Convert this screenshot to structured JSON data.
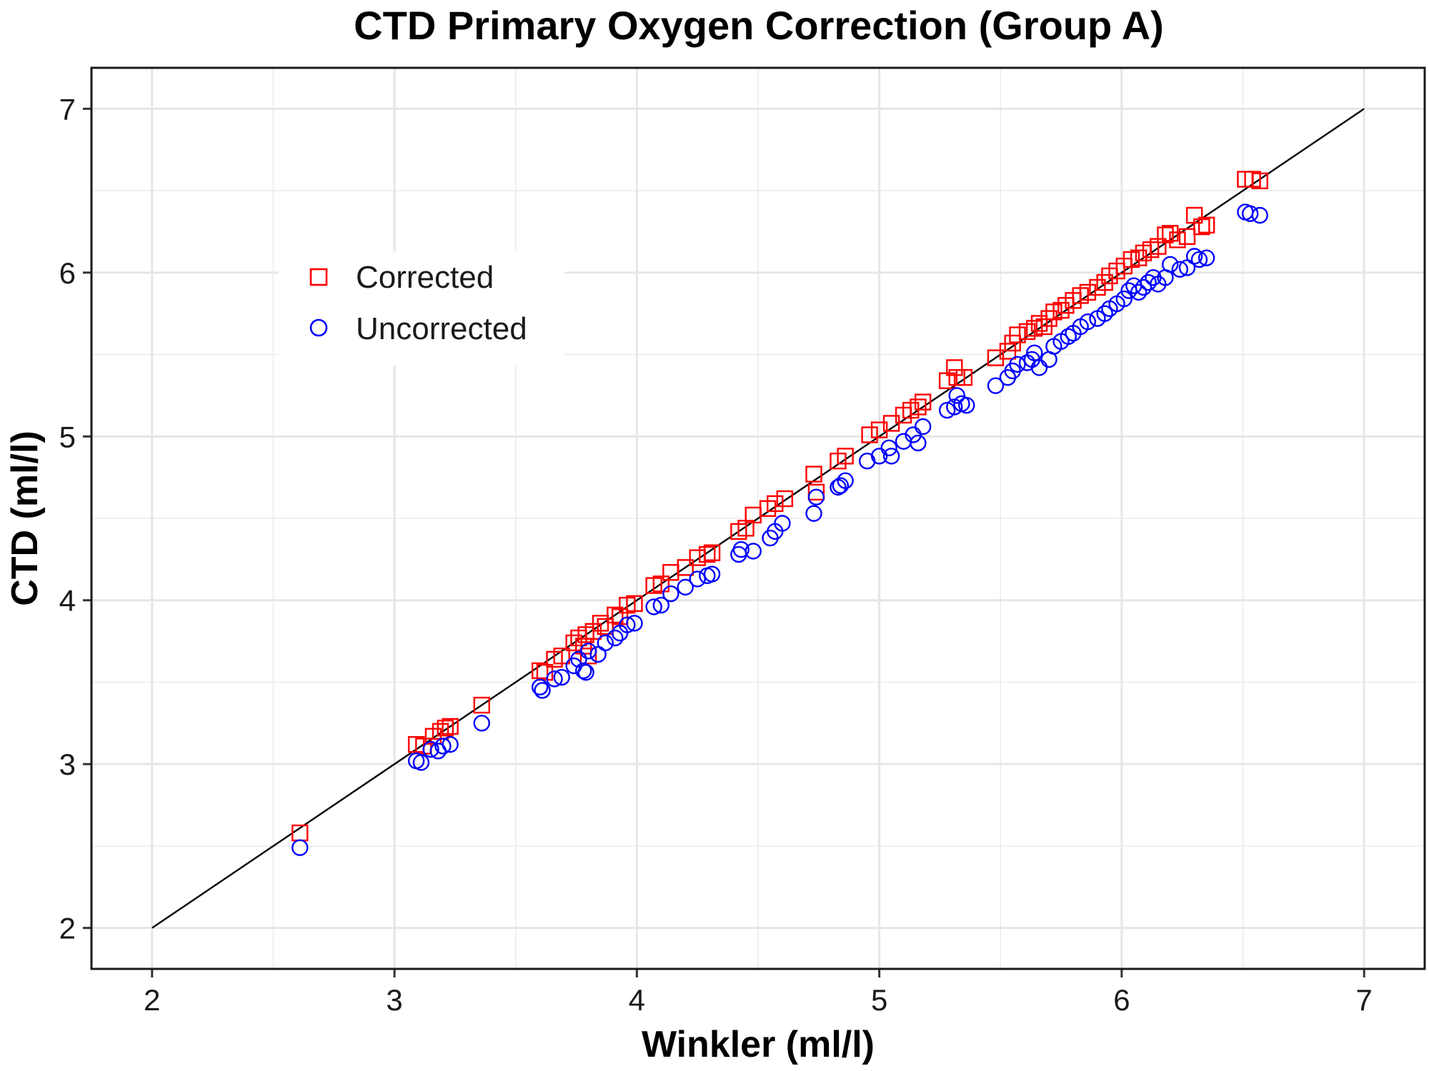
{
  "chart_data": {
    "type": "scatter",
    "title": "CTD Primary Oxygen Correction (Group A)",
    "xlabel": "Winkler (ml/l)",
    "ylabel": "CTD (ml/l)",
    "xlim": [
      1.75,
      7.25
    ],
    "ylim": [
      1.75,
      7.25
    ],
    "x_ticks": [
      2,
      3,
      4,
      5,
      6,
      7
    ],
    "y_ticks": [
      2,
      3,
      4,
      5,
      6,
      7
    ],
    "grid": true,
    "legend_position": "top-left",
    "reference_line": {
      "x": [
        2,
        7
      ],
      "y": [
        2,
        7
      ],
      "color": "#000000"
    },
    "series": [
      {
        "name": "Corrected",
        "marker": "square",
        "color": "#ff0000",
        "points": [
          [
            2.61,
            2.58
          ],
          [
            3.09,
            3.12
          ],
          [
            3.12,
            3.11
          ],
          [
            3.16,
            3.17
          ],
          [
            3.19,
            3.2
          ],
          [
            3.21,
            3.22
          ],
          [
            3.23,
            3.23
          ],
          [
            3.36,
            3.36
          ],
          [
            3.6,
            3.57
          ],
          [
            3.62,
            3.56
          ],
          [
            3.66,
            3.64
          ],
          [
            3.69,
            3.66
          ],
          [
            3.74,
            3.74
          ],
          [
            3.76,
            3.77
          ],
          [
            3.78,
            3.72
          ],
          [
            3.79,
            3.79
          ],
          [
            3.8,
            3.66
          ],
          [
            3.82,
            3.81
          ],
          [
            3.85,
            3.86
          ],
          [
            3.87,
            3.84
          ],
          [
            3.91,
            3.91
          ],
          [
            3.93,
            3.9
          ],
          [
            3.96,
            3.97
          ],
          [
            3.99,
            3.98
          ],
          [
            4.07,
            4.09
          ],
          [
            4.1,
            4.1
          ],
          [
            4.14,
            4.17
          ],
          [
            4.2,
            4.2
          ],
          [
            4.25,
            4.26
          ],
          [
            4.29,
            4.28
          ],
          [
            4.31,
            4.29
          ],
          [
            4.42,
            4.42
          ],
          [
            4.45,
            4.44
          ],
          [
            4.48,
            4.52
          ],
          [
            4.54,
            4.56
          ],
          [
            4.57,
            4.59
          ],
          [
            4.61,
            4.62
          ],
          [
            4.73,
            4.77
          ],
          [
            4.74,
            4.66
          ],
          [
            4.83,
            4.85
          ],
          [
            4.86,
            4.88
          ],
          [
            4.96,
            5.01
          ],
          [
            5.0,
            5.04
          ],
          [
            5.05,
            5.08
          ],
          [
            5.1,
            5.13
          ],
          [
            5.13,
            5.16
          ],
          [
            5.16,
            5.18
          ],
          [
            5.18,
            5.21
          ],
          [
            5.28,
            5.34
          ],
          [
            5.31,
            5.42
          ],
          [
            5.32,
            5.36
          ],
          [
            5.35,
            5.36
          ],
          [
            5.48,
            5.48
          ],
          [
            5.53,
            5.52
          ],
          [
            5.55,
            5.57
          ],
          [
            5.57,
            5.62
          ],
          [
            5.61,
            5.64
          ],
          [
            5.64,
            5.66
          ],
          [
            5.66,
            5.69
          ],
          [
            5.68,
            5.67
          ],
          [
            5.7,
            5.72
          ],
          [
            5.72,
            5.76
          ],
          [
            5.75,
            5.77
          ],
          [
            5.77,
            5.8
          ],
          [
            5.8,
            5.83
          ],
          [
            5.83,
            5.86
          ],
          [
            5.86,
            5.88
          ],
          [
            5.9,
            5.91
          ],
          [
            5.93,
            5.94
          ],
          [
            5.95,
            5.98
          ],
          [
            5.98,
            6.01
          ],
          [
            6.01,
            6.04
          ],
          [
            6.04,
            6.08
          ],
          [
            6.07,
            6.09
          ],
          [
            6.09,
            6.12
          ],
          [
            6.12,
            6.14
          ],
          [
            6.15,
            6.16
          ],
          [
            6.18,
            6.23
          ],
          [
            6.2,
            6.24
          ],
          [
            6.23,
            6.2
          ],
          [
            6.27,
            6.22
          ],
          [
            6.3,
            6.35
          ],
          [
            6.33,
            6.28
          ],
          [
            6.35,
            6.29
          ],
          [
            6.51,
            6.57
          ],
          [
            6.54,
            6.57
          ],
          [
            6.57,
            6.56
          ]
        ]
      },
      {
        "name": "Uncorrected",
        "marker": "circle",
        "color": "#0000ff",
        "points": [
          [
            2.61,
            2.49
          ],
          [
            3.09,
            3.02
          ],
          [
            3.11,
            3.01
          ],
          [
            3.15,
            3.09
          ],
          [
            3.18,
            3.08
          ],
          [
            3.2,
            3.11
          ],
          [
            3.23,
            3.12
          ],
          [
            3.36,
            3.25
          ],
          [
            3.6,
            3.47
          ],
          [
            3.61,
            3.45
          ],
          [
            3.66,
            3.52
          ],
          [
            3.69,
            3.53
          ],
          [
            3.74,
            3.6
          ],
          [
            3.76,
            3.64
          ],
          [
            3.78,
            3.57
          ],
          [
            3.79,
            3.56
          ],
          [
            3.8,
            3.69
          ],
          [
            3.84,
            3.67
          ],
          [
            3.87,
            3.74
          ],
          [
            3.91,
            3.77
          ],
          [
            3.93,
            3.8
          ],
          [
            3.96,
            3.85
          ],
          [
            3.99,
            3.86
          ],
          [
            4.07,
            3.96
          ],
          [
            4.1,
            3.97
          ],
          [
            4.14,
            4.04
          ],
          [
            4.2,
            4.08
          ],
          [
            4.25,
            4.13
          ],
          [
            4.29,
            4.15
          ],
          [
            4.31,
            4.16
          ],
          [
            4.42,
            4.28
          ],
          [
            4.43,
            4.31
          ],
          [
            4.48,
            4.3
          ],
          [
            4.55,
            4.38
          ],
          [
            4.57,
            4.42
          ],
          [
            4.6,
            4.47
          ],
          [
            4.73,
            4.53
          ],
          [
            4.74,
            4.63
          ],
          [
            4.83,
            4.69
          ],
          [
            4.84,
            4.7
          ],
          [
            4.86,
            4.73
          ],
          [
            4.95,
            4.85
          ],
          [
            5.0,
            4.88
          ],
          [
            5.04,
            4.93
          ],
          [
            5.05,
            4.88
          ],
          [
            5.1,
            4.97
          ],
          [
            5.14,
            5.01
          ],
          [
            5.16,
            4.96
          ],
          [
            5.18,
            5.06
          ],
          [
            5.28,
            5.16
          ],
          [
            5.31,
            5.18
          ],
          [
            5.32,
            5.25
          ],
          [
            5.34,
            5.2
          ],
          [
            5.36,
            5.19
          ],
          [
            5.48,
            5.31
          ],
          [
            5.53,
            5.36
          ],
          [
            5.55,
            5.4
          ],
          [
            5.57,
            5.44
          ],
          [
            5.61,
            5.45
          ],
          [
            5.63,
            5.47
          ],
          [
            5.64,
            5.51
          ],
          [
            5.66,
            5.42
          ],
          [
            5.7,
            5.47
          ],
          [
            5.72,
            5.55
          ],
          [
            5.75,
            5.58
          ],
          [
            5.78,
            5.61
          ],
          [
            5.8,
            5.63
          ],
          [
            5.83,
            5.67
          ],
          [
            5.86,
            5.7
          ],
          [
            5.9,
            5.72
          ],
          [
            5.93,
            5.75
          ],
          [
            5.95,
            5.78
          ],
          [
            5.98,
            5.81
          ],
          [
            6.01,
            5.84
          ],
          [
            6.03,
            5.89
          ],
          [
            6.05,
            5.92
          ],
          [
            6.07,
            5.88
          ],
          [
            6.09,
            5.91
          ],
          [
            6.11,
            5.94
          ],
          [
            6.13,
            5.97
          ],
          [
            6.15,
            5.93
          ],
          [
            6.18,
            5.97
          ],
          [
            6.2,
            6.05
          ],
          [
            6.24,
            6.02
          ],
          [
            6.27,
            6.03
          ],
          [
            6.3,
            6.1
          ],
          [
            6.32,
            6.08
          ],
          [
            6.35,
            6.09
          ],
          [
            6.51,
            6.37
          ],
          [
            6.53,
            6.36
          ],
          [
            6.57,
            6.35
          ]
        ]
      }
    ]
  }
}
